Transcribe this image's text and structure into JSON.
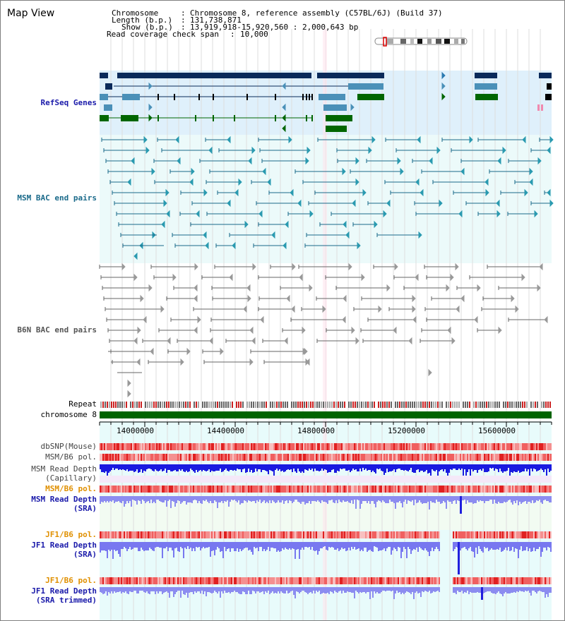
{
  "header": {
    "view_title": "Map View",
    "chromosome_label": "Chromosome",
    "chromosome_value": "Chromosome 8, reference assembly (C57BL/6J) (Build 37)",
    "length_label": "Length (b.p.)",
    "length_value": "131,738,871",
    "show_label": "Show (b.p.)",
    "show_value": "13,919,918-15,920,560 : 2,000,643 bp",
    "coverage_label": "Read coverage check span",
    "coverage_value": "10,000"
  },
  "tracks": {
    "refseq": "RefSeq Genes",
    "msm_bac": "MSM BAC end pairs",
    "b6n_bac": "B6N BAC end pairs",
    "repeat": "Repeat",
    "chromosome": "chromosome 8",
    "dbsnp": "dbSNP(Mouse)",
    "msm_b6_pol_1": "MSM/B6 pol.",
    "msm_depth_cap_1": "MSM Read Depth",
    "msm_depth_cap_2": "(Capillary)",
    "msm_b6_pol_2": "MSM/B6 pol.",
    "msm_depth_sra_1": "MSM Read Depth",
    "msm_depth_sra_2": "(SRA)",
    "jf1_b6_pol_1": "JF1/B6 pol.",
    "jf1_depth_sra_1": "JF1 Read Depth",
    "jf1_depth_sra_2": "(SRA)",
    "jf1_b6_pol_2": "JF1/B6 pol.",
    "jf1_depth_trim_1": "JF1 Read Depth",
    "jf1_depth_trim_2": "(SRA trimmed)"
  },
  "axis": {
    "ticks": [
      "14000000",
      "14400000",
      "14800000",
      "15200000",
      "15600000"
    ]
  },
  "colors": {
    "refseq_label": "#1a1aaa",
    "msm_bac_label": "#1a6a8a",
    "b6n_label": "#555555",
    "orange_label": "#e09000",
    "blue_label": "#1a1aaa",
    "dark_navy": "#0a2a5a",
    "mid_blue": "#4a90b8",
    "gene_green": "#006600",
    "teal": "#1a6a8a"
  }
}
